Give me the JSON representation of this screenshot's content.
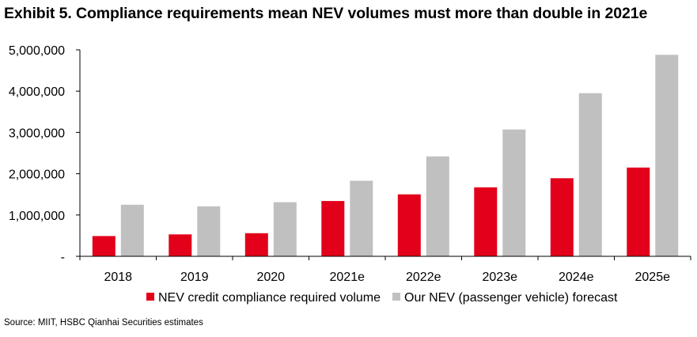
{
  "title": "Exhibit 5. Compliance requirements mean NEV volumes must more than double in 2021e",
  "source": "Source: MIIT, HSBC Qianhai Securities estimates",
  "colors": {
    "series1": "#e2001a",
    "series2": "#c0c0c0",
    "axis": "#000000"
  },
  "chart_data": {
    "type": "bar",
    "categories": [
      "2018",
      "2019",
      "2020",
      "2021e",
      "2022e",
      "2023e",
      "2024e",
      "2025e"
    ],
    "series": [
      {
        "name": "NEV credit compliance required volume",
        "values": [
          490000,
          530000,
          560000,
          1340000,
          1500000,
          1670000,
          1890000,
          2150000
        ]
      },
      {
        "name": "Our NEV (passenger vehicle) forecast",
        "values": [
          1250000,
          1210000,
          1310000,
          1830000,
          2420000,
          3070000,
          3950000,
          4880000
        ]
      }
    ],
    "ylim": [
      0,
      5000000
    ],
    "yticks": [
      0,
      1000000,
      2000000,
      3000000,
      4000000,
      5000000
    ],
    "ytick_labels": [
      "-",
      "1,000,000",
      "2,000,000",
      "3,000,000",
      "4,000,000",
      "5,000,000"
    ],
    "grid": false,
    "legend": "bottom"
  }
}
